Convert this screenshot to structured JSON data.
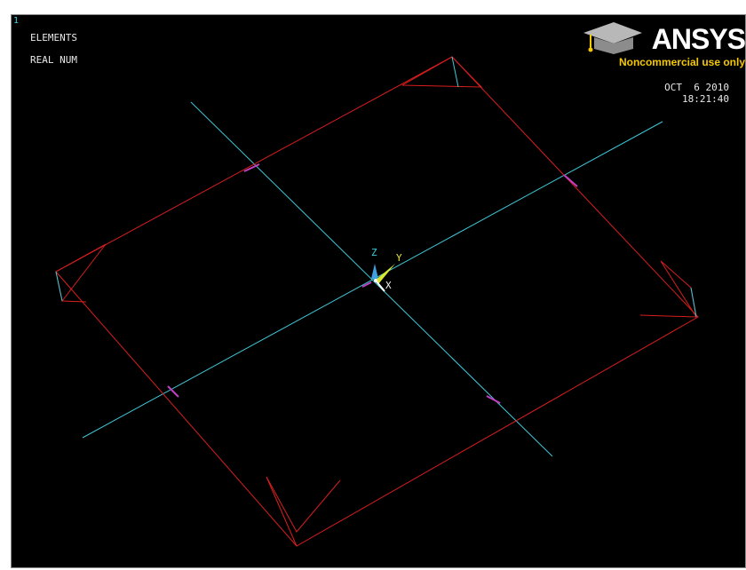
{
  "window": {
    "number": "1",
    "plot_title_line1": "ELEMENTS",
    "plot_title_line2": "REAL NUM"
  },
  "timestamp": {
    "date": "OCT  6 2010",
    "time": "18:21:40"
  },
  "logo": {
    "brand": "ANSYS",
    "tagline": "Noncommercial use only",
    "icon": "graduation-cap-icon"
  },
  "triad": {
    "x_label": "X",
    "y_label": "Y",
    "z_label": "Z"
  },
  "colors": {
    "background": "#000000",
    "plate_edges": "#d81e1e",
    "beam_lines": "#3fc8d8",
    "intersections": "#c040c0",
    "logo_accent": "#f5c800"
  }
}
